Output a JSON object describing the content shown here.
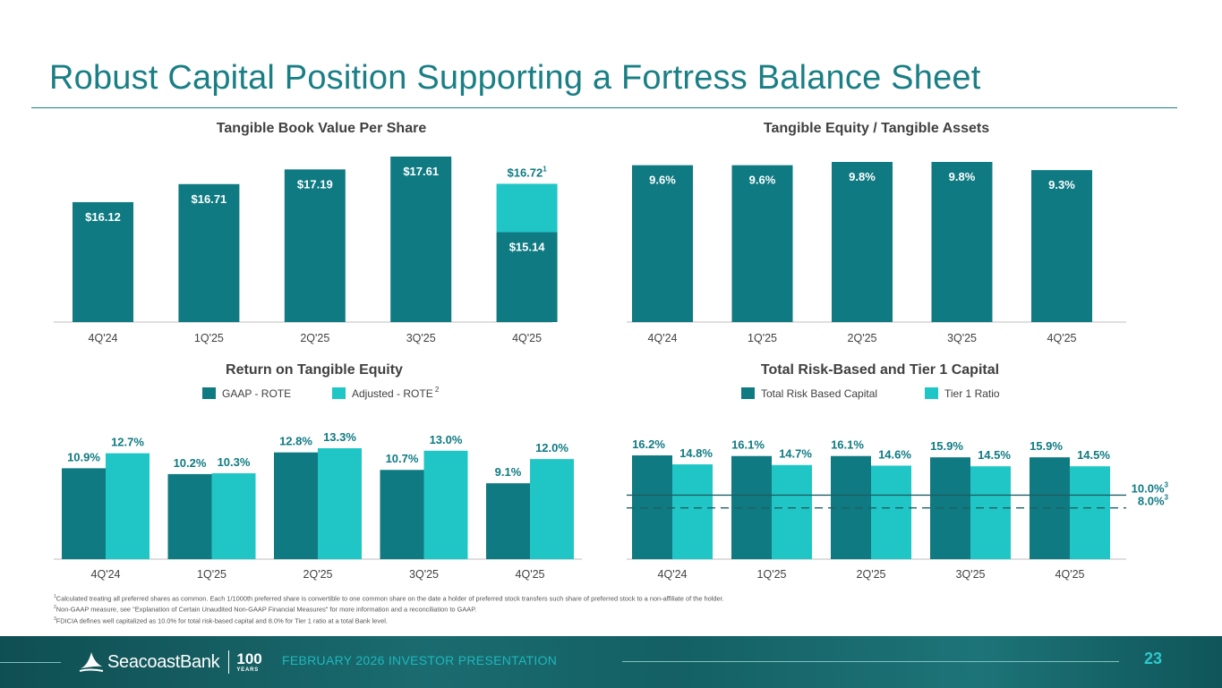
{
  "header": {
    "title": "Robust Capital Position Supporting a Fortress Balance Sheet"
  },
  "colors": {
    "primary": "#0f7a82",
    "secondary": "#20c6c6",
    "title": "#1a7f85",
    "text": "#404040"
  },
  "chart_data": [
    {
      "id": "tbvps",
      "type": "bar",
      "title": "Tangible Book Value Per Share",
      "categories": [
        "4Q'24",
        "1Q'25",
        "2Q'25",
        "3Q'25",
        "4Q'25"
      ],
      "series": [
        {
          "values": [
            16.12,
            16.71,
            17.19,
            17.61,
            15.14
          ]
        },
        {
          "values": [
            null,
            null,
            null,
            null,
            16.72
          ]
        }
      ],
      "labels": [
        "$16.12",
        "$16.71",
        "$17.19",
        "$17.61",
        "$15.14"
      ],
      "stack_label": {
        "text": "$16.72",
        "sup": "1"
      },
      "axis_min": 12.2
    },
    {
      "id": "tce",
      "type": "bar",
      "title": "Tangible Equity / Tangible Assets",
      "categories": [
        "4Q'24",
        "1Q'25",
        "2Q'25",
        "3Q'25",
        "4Q'25"
      ],
      "values": [
        9.6,
        9.6,
        9.8,
        9.8,
        9.3
      ],
      "labels": [
        "9.6%",
        "9.6%",
        "9.8%",
        "9.8%",
        "9.3%"
      ],
      "axis_min": 0
    },
    {
      "id": "rote",
      "type": "bar",
      "title": "Return on Tangible Equity",
      "categories": [
        "4Q'24",
        "1Q'25",
        "2Q'25",
        "3Q'25",
        "4Q'25"
      ],
      "series": [
        {
          "name": "GAAP - ROTE",
          "values": [
            10.9,
            10.2,
            12.8,
            10.7,
            9.1
          ],
          "labels": [
            "10.9%",
            "10.2%",
            "12.8%",
            "10.7%",
            "9.1%"
          ]
        },
        {
          "name": "Adjusted - ROTE",
          "name_sup": "2",
          "values": [
            12.7,
            10.3,
            13.3,
            13.0,
            12.0
          ],
          "labels": [
            "12.7%",
            "10.3%",
            "13.3%",
            "13.0%",
            "12.0%"
          ]
        }
      ],
      "legend": "top"
    },
    {
      "id": "capital",
      "type": "bar",
      "title": "Total Risk-Based and Tier 1 Capital",
      "categories": [
        "4Q'24",
        "1Q'25",
        "2Q'25",
        "3Q'25",
        "4Q'25"
      ],
      "series": [
        {
          "name": "Total Risk Based Capital",
          "values": [
            16.2,
            16.1,
            16.1,
            15.9,
            15.9
          ],
          "labels": [
            "16.2%",
            "16.1%",
            "16.1%",
            "15.9%",
            "15.9%"
          ]
        },
        {
          "name": "Tier 1 Ratio",
          "values": [
            14.8,
            14.7,
            14.6,
            14.5,
            14.5
          ],
          "labels": [
            "14.8%",
            "14.7%",
            "14.6%",
            "14.5%",
            "14.5%"
          ]
        }
      ],
      "reference_lines": [
        {
          "value": 10.0,
          "label": "10.0%",
          "sup": "3",
          "style": "solid"
        },
        {
          "value": 8.0,
          "label": "8.0%",
          "sup": "3",
          "style": "dashed"
        }
      ],
      "legend": "top"
    }
  ],
  "footnotes": [
    {
      "sup": "1",
      "text": "Calculated treating all preferred shares as common. Each 1/1000th preferred share is convertible to one common share on the date a holder of preferred stock transfers such share of preferred stock to a non-affiliate of the holder."
    },
    {
      "sup": "2",
      "text": "Non-GAAP measure, see \"Explanation of Certain Unaudited Non-GAAP Financial Measures\" for more information and a reconciliation to GAAP."
    },
    {
      "sup": "3",
      "text": "FDICIA defines well capitalized as 10.0% for total risk-based capital and 8.0% for Tier 1 ratio at a total Bank level."
    }
  ],
  "footer": {
    "logo_text": "SeacoastBank",
    "years_number": "100",
    "years_label": "YEARS",
    "presentation": "FEBRUARY 2026 INVESTOR PRESENTATION",
    "page_number": "23"
  }
}
